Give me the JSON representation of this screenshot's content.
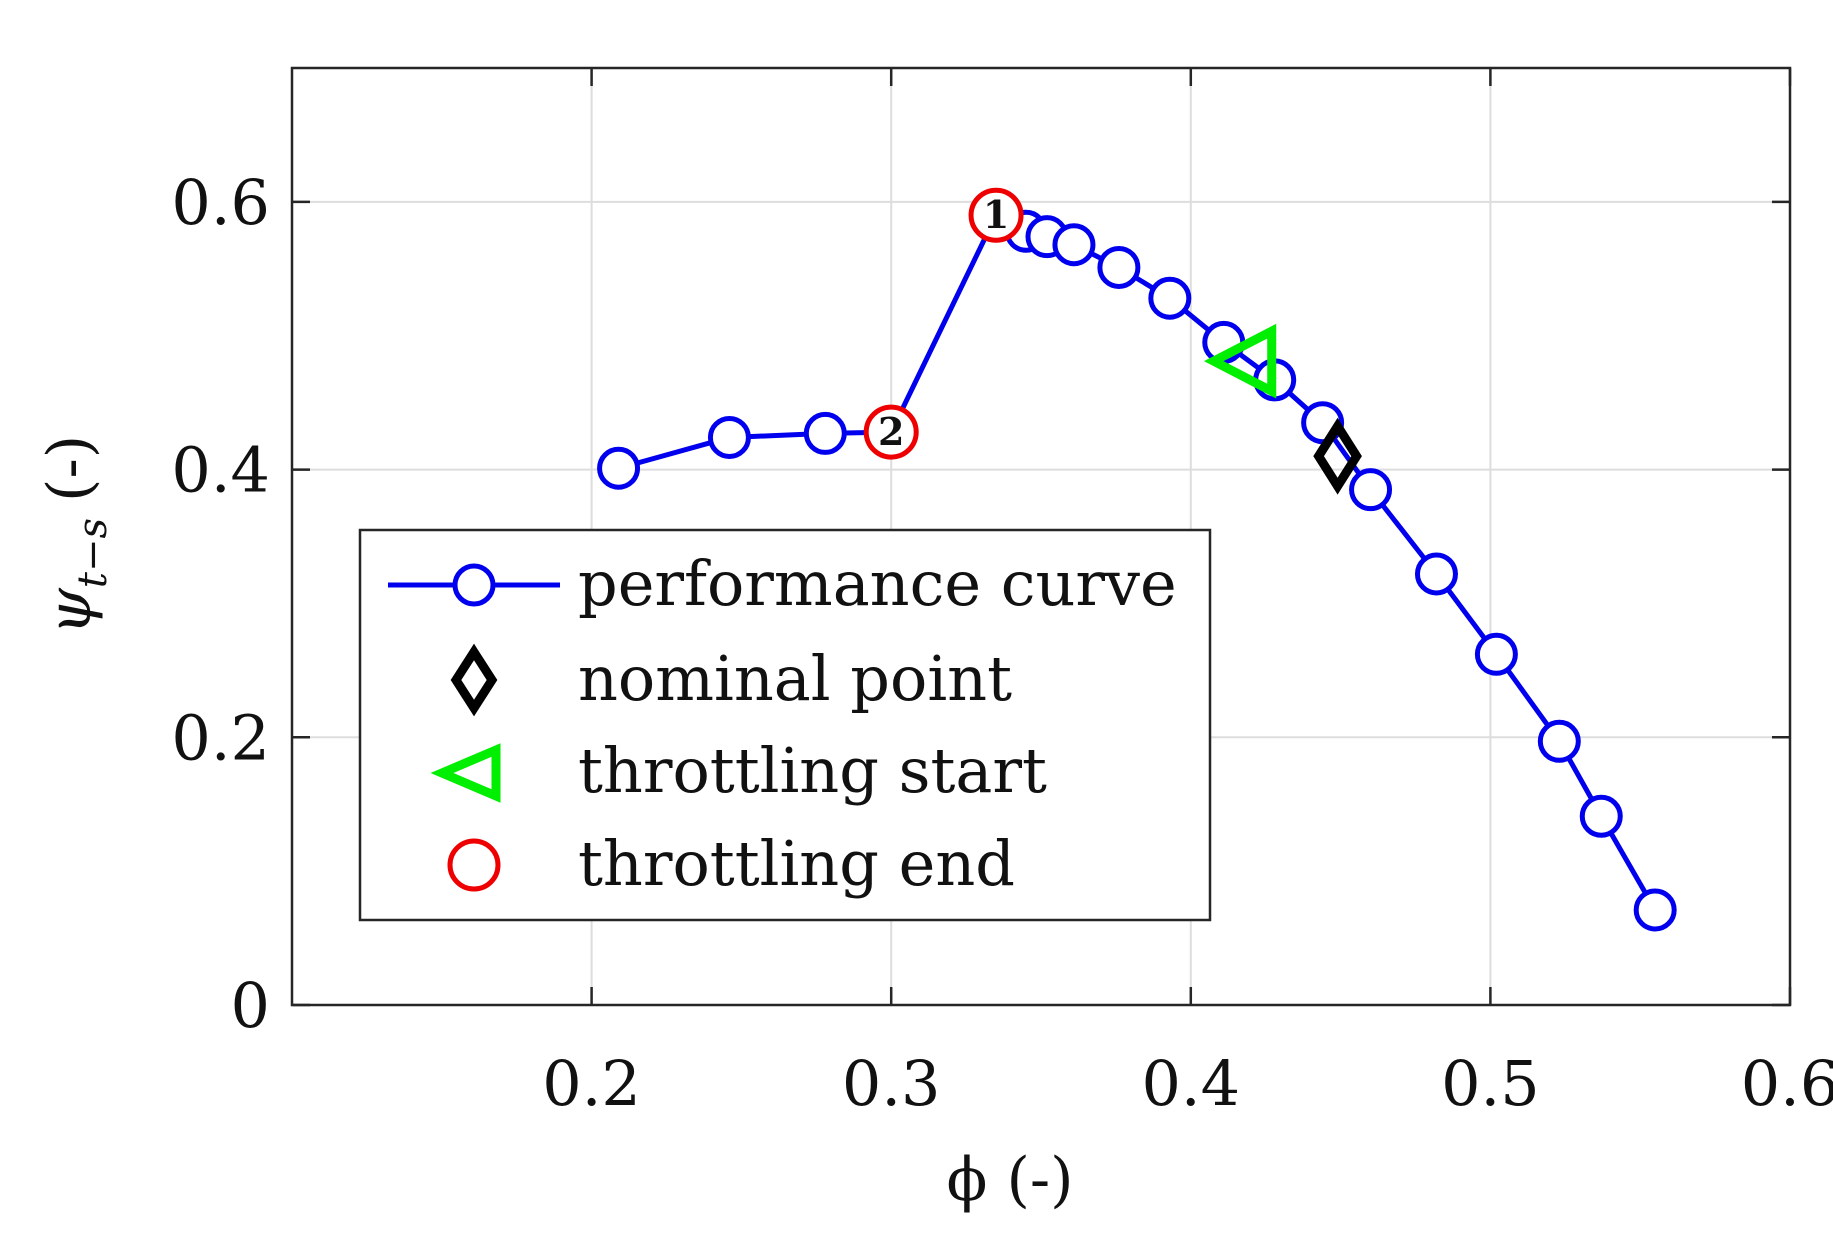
{
  "chart_data": {
    "type": "line",
    "title": "",
    "xlabel": "ϕ (-)",
    "ylabel_main": "ψ",
    "ylabel_sub": "t−s",
    "ylabel_unit": "(-)",
    "xlim": [
      0.1,
      0.6
    ],
    "ylim": [
      0,
      0.7
    ],
    "xticks": [
      0.2,
      0.3,
      0.4,
      0.5,
      0.6
    ],
    "yticks": [
      0,
      0.2,
      0.4,
      0.6
    ],
    "xtick_labels": [
      "0.2",
      "0.3",
      "0.4",
      "0.5",
      "0.6"
    ],
    "ytick_labels": [
      "0",
      "0.2",
      "0.4",
      "0.6"
    ],
    "grid": true,
    "legend_position": "lower-left",
    "series": [
      {
        "name": "performance curve",
        "color": "#0000ee",
        "marker": "circle",
        "x": [
          0.209,
          0.246,
          0.278,
          0.3,
          0.335,
          0.345,
          0.352,
          0.361,
          0.376,
          0.393,
          0.411,
          0.428,
          0.444,
          0.46,
          0.482,
          0.502,
          0.523,
          0.537,
          0.555
        ],
        "y": [
          0.401,
          0.424,
          0.427,
          0.428,
          0.59,
          0.578,
          0.574,
          0.568,
          0.551,
          0.528,
          0.495,
          0.467,
          0.435,
          0.385,
          0.322,
          0.262,
          0.197,
          0.141,
          0.071
        ]
      },
      {
        "name": "nominal point",
        "color": "#000000",
        "marker": "diamond",
        "x": [
          0.449
        ],
        "y": [
          0.41
        ]
      },
      {
        "name": "throttling start",
        "color": "#00ee00",
        "marker": "triangle-left",
        "x": [
          0.419
        ],
        "y": [
          0.481
        ]
      },
      {
        "name": "throttling end",
        "color": "#ee0000",
        "marker": "circle",
        "x": [
          0.335,
          0.3
        ],
        "y": [
          0.59,
          0.428
        ]
      }
    ],
    "annotations": [
      {
        "text": "1",
        "x": 0.335,
        "y": 0.59
      },
      {
        "text": "2",
        "x": 0.3,
        "y": 0.428
      }
    ]
  }
}
